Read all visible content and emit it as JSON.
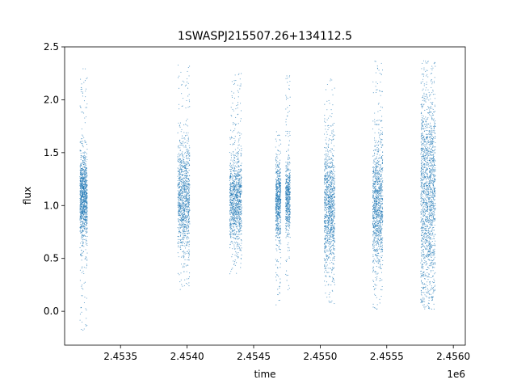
{
  "chart_data": {
    "type": "scatter",
    "title": "1SWASPJ215507.26+134112.5",
    "xlabel": "time",
    "ylabel": "flux",
    "x_offset_label": "1e6",
    "xlim": [
      2453080,
      2456090
    ],
    "ylim": [
      -0.32,
      2.5
    ],
    "x_ticks": [
      {
        "value": 2453500,
        "label": "2.4535"
      },
      {
        "value": 2454000,
        "label": "2.4540"
      },
      {
        "value": 2454500,
        "label": "2.4545"
      },
      {
        "value": 2455000,
        "label": "2.4550"
      },
      {
        "value": 2455500,
        "label": "2.4555"
      },
      {
        "value": 2456000,
        "label": "2.4560"
      }
    ],
    "y_ticks": [
      {
        "value": 0.0,
        "label": "0.0"
      },
      {
        "value": 0.5,
        "label": "0.5"
      },
      {
        "value": 1.0,
        "label": "1.0"
      },
      {
        "value": 1.5,
        "label": "1.5"
      },
      {
        "value": 2.0,
        "label": "2.0"
      },
      {
        "value": 2.5,
        "label": "2.5"
      }
    ],
    "grid": false,
    "marker_color": "#1f77b4",
    "series": [
      {
        "clusters": [
          {
            "x": [
              2453195,
              2453250
            ],
            "y_median": 1.08,
            "y_core": [
              0.85,
              1.3
            ],
            "y_range": [
              -0.18,
              2.3
            ],
            "density": 1.0
          },
          {
            "x": [
              2453930,
              2454020
            ],
            "y_median": 1.05,
            "y_core": [
              0.75,
              1.35
            ],
            "y_range": [
              0.2,
              2.33
            ],
            "density": 1.0
          },
          {
            "x": [
              2454320,
              2454410
            ],
            "y_median": 1.05,
            "y_core": [
              0.8,
              1.3
            ],
            "y_range": [
              0.35,
              2.25
            ],
            "density": 1.0
          },
          {
            "x": [
              2454665,
              2454705
            ],
            "y_median": 1.05,
            "y_core": [
              0.85,
              1.25
            ],
            "y_range": [
              0.05,
              1.7
            ],
            "density": 0.6
          },
          {
            "x": [
              2454740,
              2454775
            ],
            "y_median": 1.07,
            "y_core": [
              0.9,
              1.25
            ],
            "y_range": [
              0.2,
              2.25
            ],
            "density": 0.5
          },
          {
            "x": [
              2455030,
              2455110
            ],
            "y_median": 1.0,
            "y_core": [
              0.7,
              1.35
            ],
            "y_range": [
              0.05,
              2.2
            ],
            "density": 1.0
          },
          {
            "x": [
              2455395,
              2455470
            ],
            "y_median": 1.0,
            "y_core": [
              0.7,
              1.35
            ],
            "y_range": [
              0.0,
              2.37
            ],
            "density": 1.0
          },
          {
            "x": [
              2455755,
              2455865
            ],
            "y_median": 1.1,
            "y_core": [
              0.55,
              1.75
            ],
            "y_range": [
              0.02,
              2.37
            ],
            "density": 1.6
          }
        ]
      }
    ]
  }
}
